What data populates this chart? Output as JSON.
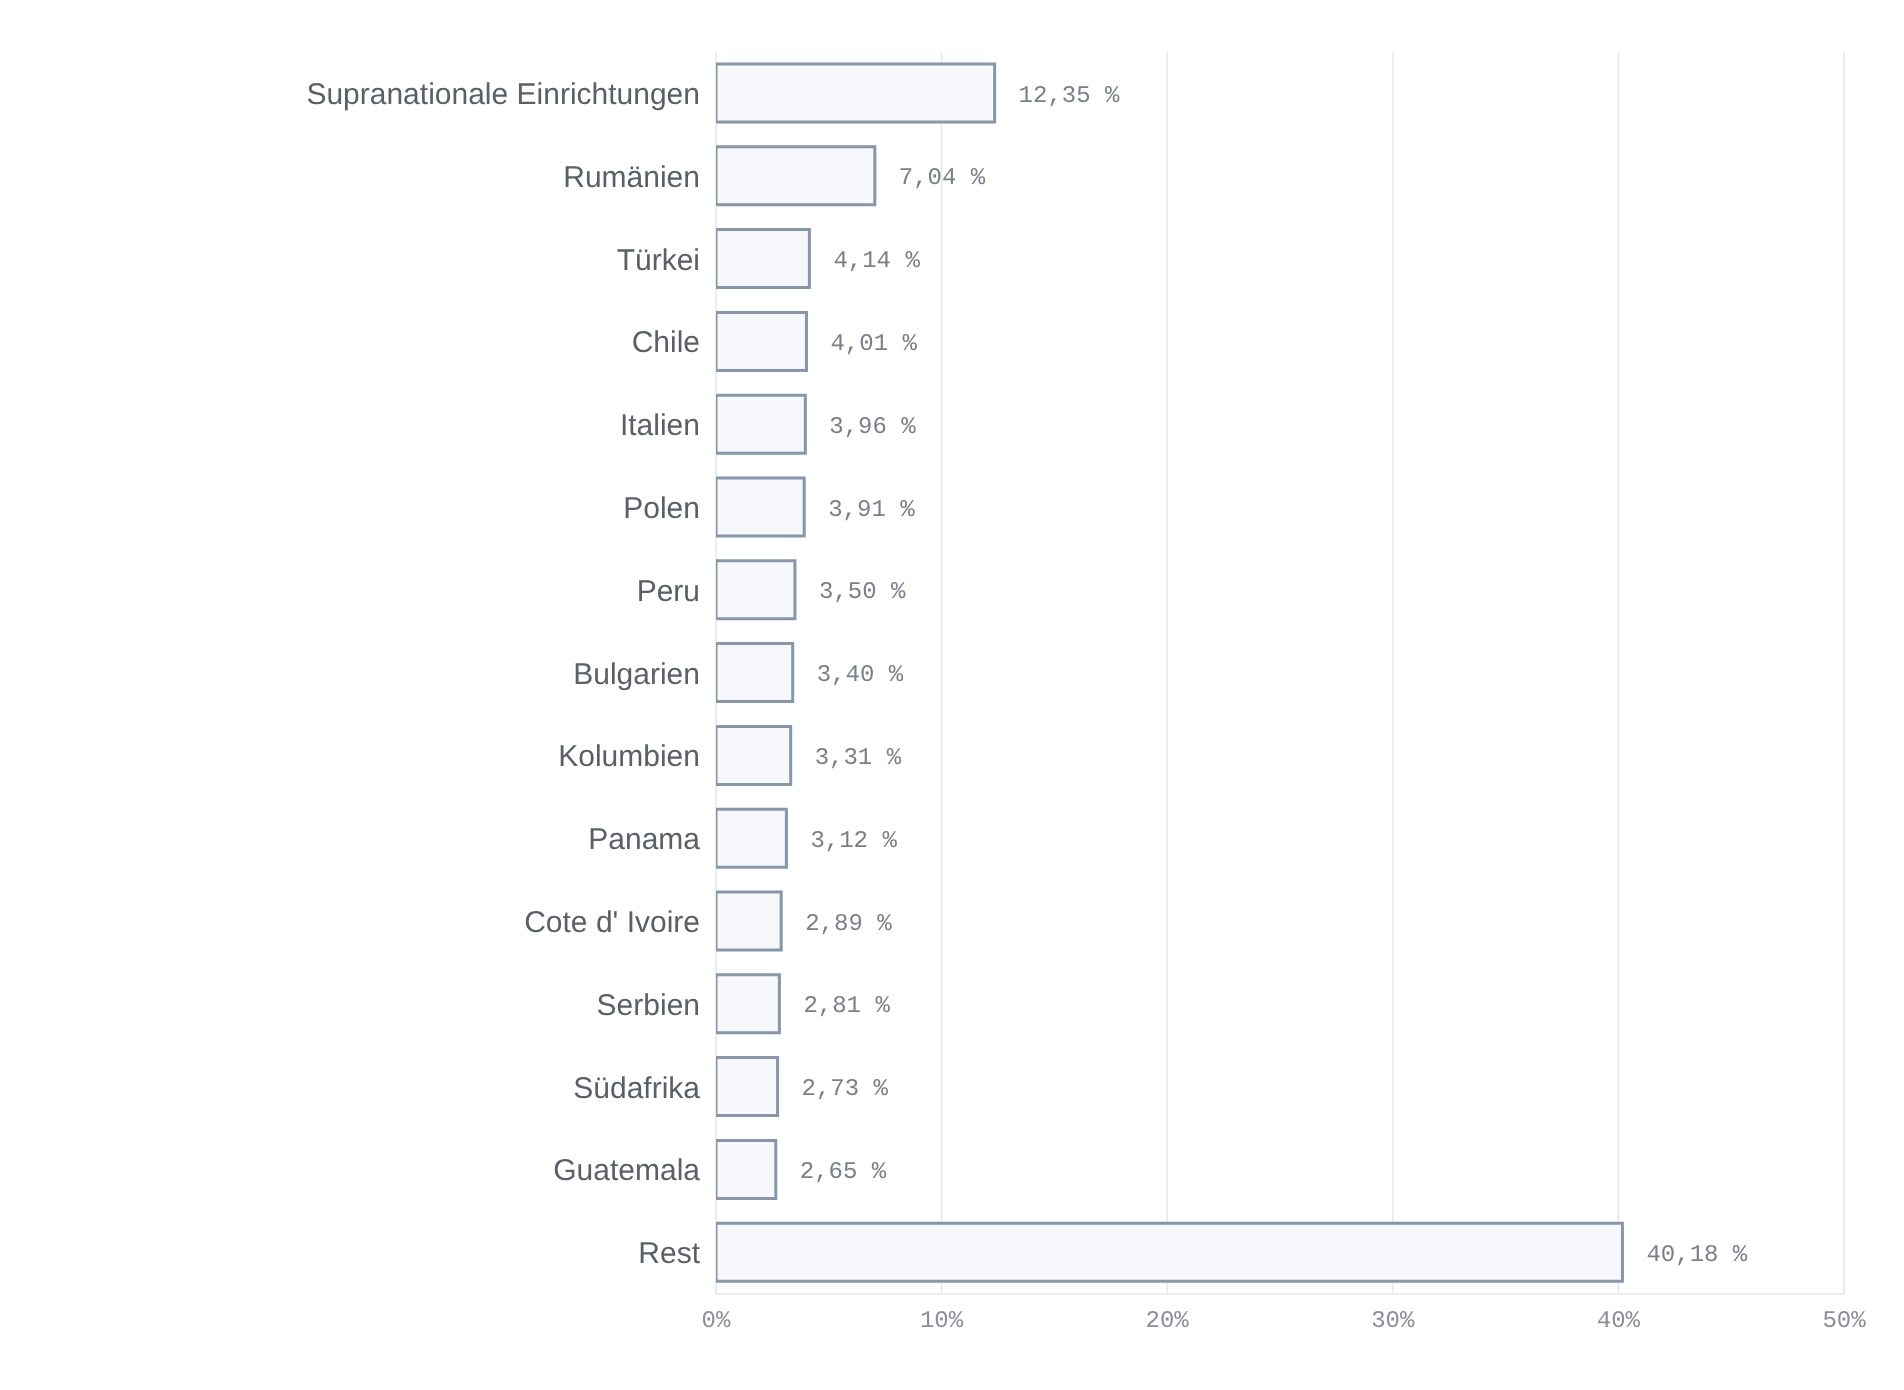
{
  "chart_data": {
    "type": "bar",
    "orientation": "horizontal",
    "categories": [
      "Supranationale Einrichtungen",
      "Rumänien",
      "Türkei",
      "Chile",
      "Italien",
      "Polen",
      "Peru",
      "Bulgarien",
      "Kolumbien",
      "Panama",
      "Cote d' Ivoire",
      "Serbien",
      "Südafrika",
      "Guatemala",
      "Rest"
    ],
    "values": [
      12.35,
      7.04,
      4.14,
      4.01,
      3.96,
      3.91,
      3.5,
      3.4,
      3.31,
      3.12,
      2.89,
      2.81,
      2.73,
      2.65,
      40.18
    ],
    "value_labels": [
      "12,35 %",
      "7,04 %",
      "4,14 %",
      "4,01 %",
      "3,96 %",
      "3,91 %",
      "3,50 %",
      "3,40 %",
      "3,31 %",
      "3,12 %",
      "2,89 %",
      "2,81 %",
      "2,73 %",
      "2,65 %",
      "40,18 %"
    ],
    "color": "#f6f8fb",
    "xlim": [
      0,
      50
    ],
    "xticks": [
      {
        "value": 0,
        "label": "0%"
      },
      {
        "value": 10,
        "label": "10%"
      },
      {
        "value": 20,
        "label": "20%"
      },
      {
        "value": 30,
        "label": "30%"
      },
      {
        "value": 40,
        "label": "40%"
      },
      {
        "value": 50,
        "label": "50%"
      }
    ],
    "grid": "x"
  }
}
